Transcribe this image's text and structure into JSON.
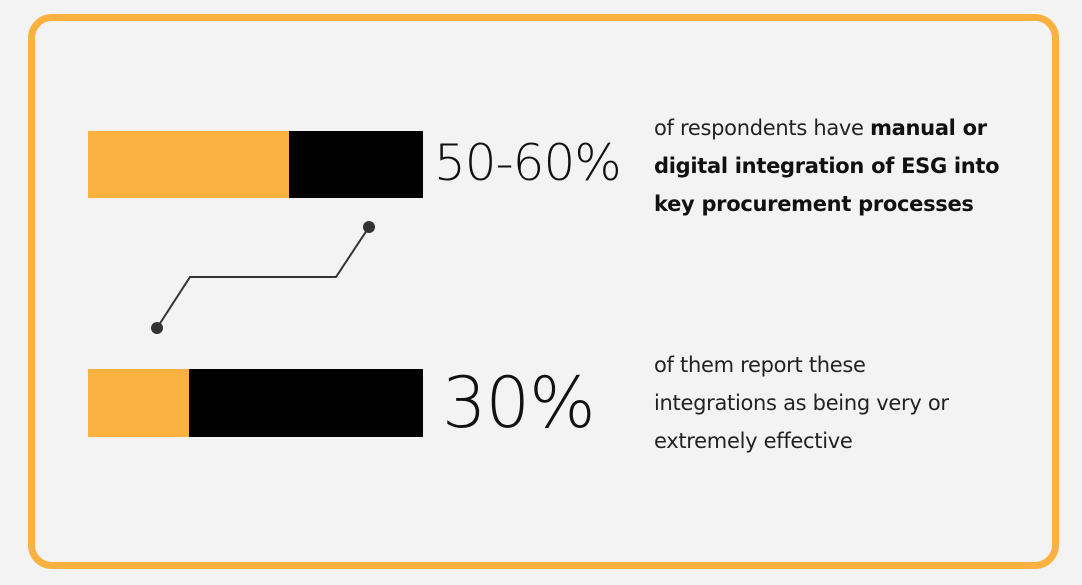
{
  "stats": [
    {
      "value_text": "50-60%",
      "bar_fill_fraction": 0.6,
      "description_lines": [
        {
          "plain": "of respondents have ",
          "bold": "manual or"
        },
        {
          "plain": "",
          "bold": "digital integration of ESG into"
        },
        {
          "plain": "",
          "bold": "key procurement processes"
        }
      ]
    },
    {
      "value_text": "30%",
      "bar_fill_fraction": 0.3,
      "description_lines": [
        {
          "plain": "of them report these",
          "bold": ""
        },
        {
          "plain": "integrations as being very or",
          "bold": ""
        },
        {
          "plain": "extremely effective",
          "bold": ""
        }
      ]
    }
  ],
  "colors": {
    "accent": "#fbb13f",
    "bar_dark": "#000000",
    "background": "#f3f3f3",
    "text": "#111111"
  }
}
